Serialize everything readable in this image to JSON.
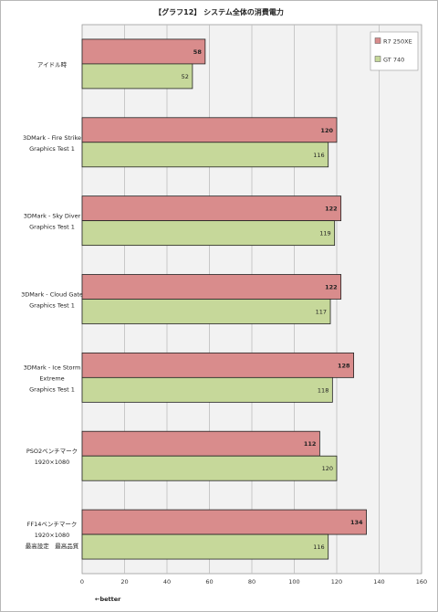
{
  "chart_data": {
    "type": "bar",
    "orientation": "horizontal",
    "title": "【グラフ12】 システム全体の消費電力",
    "categories": [
      [
        "アイドル時"
      ],
      [
        "3DMark - Fire Strike",
        "Graphics Test 1"
      ],
      [
        "3DMark - Sky Diver",
        "Graphics Test 1"
      ],
      [
        "3DMark - Cloud Gate",
        "Graphics Test 1"
      ],
      [
        "3DMark - Ice Storm",
        "Extreme",
        "Graphics Test 1"
      ],
      [
        "PSO2ベンチマーク",
        "1920×1080"
      ],
      [
        "FF14ベンチマーク",
        "1920×1080",
        "最高設定　最高品質"
      ]
    ],
    "series": [
      {
        "name": "R7 250XE",
        "color": "#d98c8c",
        "values": [
          58,
          120,
          122,
          122,
          128,
          112,
          134
        ]
      },
      {
        "name": "GT 740",
        "color": "#c6d89a",
        "values": [
          52,
          116,
          119,
          117,
          118,
          120,
          116
        ]
      }
    ],
    "xlim": [
      0,
      160
    ],
    "xticks": [
      0,
      20,
      40,
      60,
      80,
      100,
      120,
      140,
      160
    ],
    "xlabel": "←better",
    "grid": true,
    "legend_position": "top-right"
  }
}
